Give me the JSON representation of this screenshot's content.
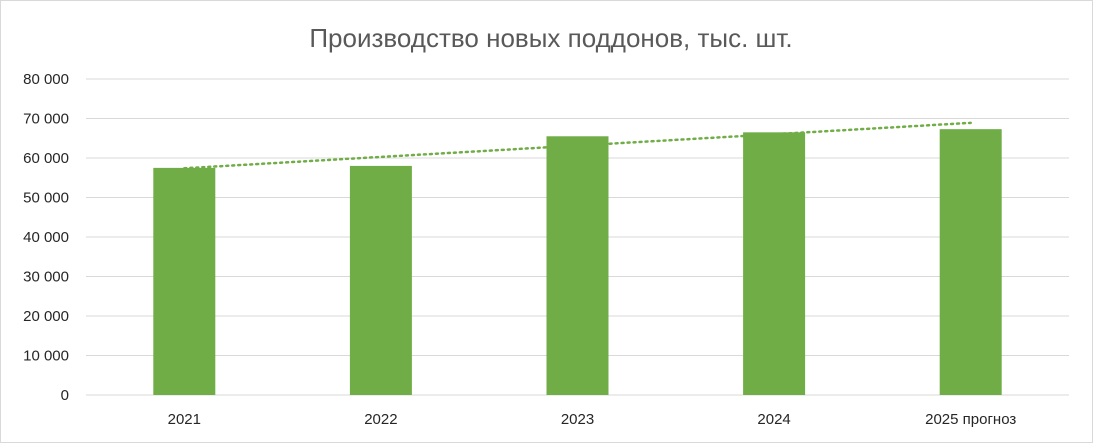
{
  "chart_data": {
    "type": "bar",
    "title": "Производство новых поддонов, тыс. шт.",
    "categories": [
      "2021",
      "2022",
      "2023",
      "2024",
      "2025 прогноз"
    ],
    "values": [
      57500,
      58000,
      65500,
      66500,
      67300
    ],
    "y_ticks": [
      "0",
      "10 000",
      "20 000",
      "30 000",
      "40 000",
      "50 000",
      "60 000",
      "70 000",
      "80 000"
    ],
    "ylim": [
      0,
      80000
    ],
    "grid": true,
    "legend": "none",
    "trendline": {
      "type": "linear",
      "style": "dotted",
      "start_value": 57400,
      "end_value": 68900
    },
    "colors": {
      "bar": "#70ad47",
      "trendline": "#70ad47",
      "grid": "#d9d9d9",
      "title": "#595959",
      "tick": "#262626"
    }
  }
}
